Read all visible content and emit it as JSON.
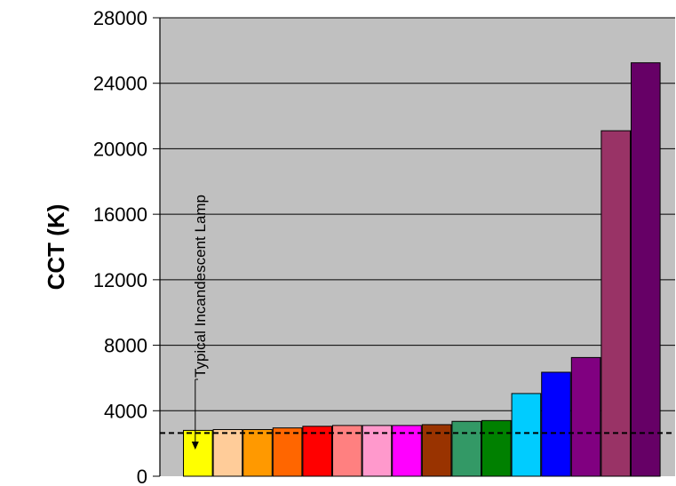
{
  "chart_data": {
    "type": "bar",
    "title": "",
    "xlabel": "",
    "ylabel": "CCT (K)",
    "ylim": [
      0,
      28000
    ],
    "yticks": [
      0,
      4000,
      8000,
      12000,
      16000,
      20000,
      24000,
      28000
    ],
    "grid": true,
    "plot_background": "#c0c0c0",
    "values": [
      2800,
      2850,
      2850,
      2950,
      3050,
      3100,
      3100,
      3100,
      3150,
      3350,
      3400,
      5050,
      6350,
      7250,
      21100,
      25250
    ],
    "colors": [
      "#ffff00",
      "#ffcc99",
      "#ff9900",
      "#ff6600",
      "#ff0000",
      "#ff8080",
      "#ff99cc",
      "#ff00ff",
      "#993300",
      "#339966",
      "#008000",
      "#00ccff",
      "#0000ff",
      "#800080",
      "#993366",
      "#660066"
    ],
    "reference_line": {
      "value": 2800,
      "style": "dashed",
      "color": "#000000"
    },
    "annotation": {
      "text": "Typical Incandescent Lamp",
      "target_index": 0
    }
  }
}
